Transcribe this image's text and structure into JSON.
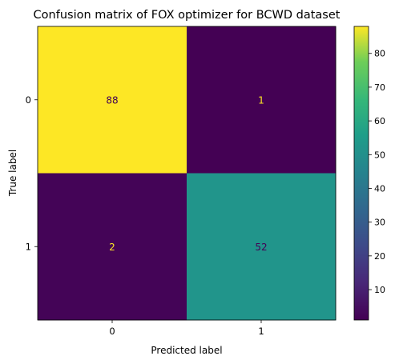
{
  "chart_data": {
    "type": "heatmap",
    "title": "Confusion matrix of FOX optimizer for BCWD dataset",
    "xlabel": "Predicted label",
    "ylabel": "True label",
    "x_categories": [
      "0",
      "1"
    ],
    "y_categories": [
      "0",
      "1"
    ],
    "values": [
      [
        88,
        1
      ],
      [
        2,
        52
      ]
    ],
    "colormap": "viridis",
    "colorbar_range": [
      1,
      88
    ],
    "colorbar_ticks": [
      10,
      20,
      30,
      40,
      50,
      60,
      70,
      80
    ],
    "colors": {
      "high": "#fde725",
      "mid": "#21a685",
      "low": "#440154",
      "text_on_dark": "#fde725",
      "text_on_light": "#440154"
    }
  }
}
